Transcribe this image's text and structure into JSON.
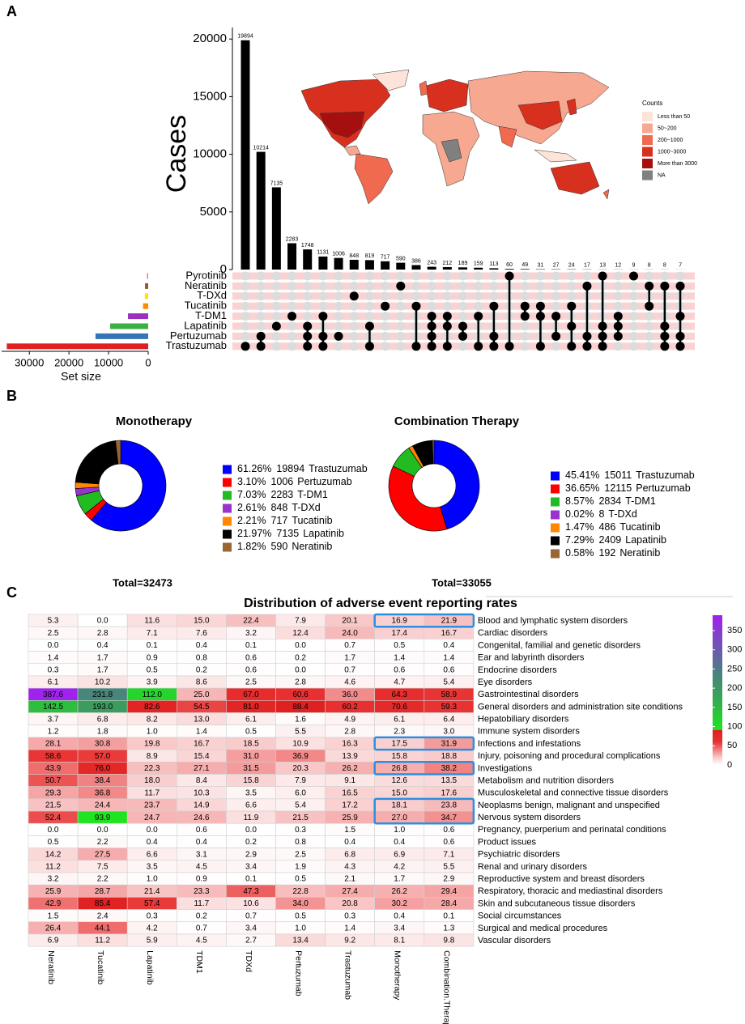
{
  "panel_labels": [
    "A",
    "B",
    "C"
  ],
  "chart_data": [
    {
      "type": "bar",
      "ylabel": "Cases",
      "color": "#000000",
      "categories": [
        null,
        null,
        null,
        null,
        null,
        null,
        null,
        null,
        null,
        null,
        null,
        null,
        null,
        null,
        null,
        null,
        null,
        null,
        null,
        null,
        null,
        null,
        null,
        null,
        null,
        null,
        null,
        null,
        null
      ],
      "values": [
        19894,
        10214,
        7135,
        2283,
        1748,
        1131,
        1006,
        848,
        819,
        717,
        590,
        386,
        243,
        212,
        189,
        159,
        113,
        60,
        49,
        31,
        27,
        24,
        17,
        13,
        12,
        9,
        8,
        8,
        7
      ],
      "intersections": [
        [
          7
        ],
        [
          6,
          7
        ],
        [
          5
        ],
        [
          4
        ],
        [
          5,
          6,
          7
        ],
        [
          4,
          6,
          7
        ],
        [
          6
        ],
        [
          2
        ],
        [
          5,
          7
        ],
        [
          3
        ],
        [
          1
        ],
        [
          3,
          7
        ],
        [
          4,
          5,
          6,
          7
        ],
        [
          4,
          5,
          7
        ],
        [
          5,
          6
        ],
        [
          4,
          7
        ],
        [
          3,
          6,
          7
        ],
        [
          0,
          7
        ],
        [
          3,
          4
        ],
        [
          3,
          4,
          7
        ],
        [
          4,
          6
        ],
        [
          3,
          5,
          7
        ],
        [
          1,
          6,
          7
        ],
        [
          0,
          5,
          6,
          7
        ],
        [
          4,
          5,
          6
        ],
        [
          0
        ],
        [
          1,
          3
        ],
        [
          1,
          5,
          6,
          7
        ],
        [
          1,
          4,
          6,
          7
        ]
      ],
      "ylim": [
        0,
        21000
      ],
      "yticks": [
        0,
        5000,
        10000,
        15000,
        20000
      ]
    },
    {
      "type": "barh",
      "xlabel": "Set size",
      "x_reversed": true,
      "categories": [
        "Pyrotinib",
        "Neratinib",
        "T-DXd",
        "Tucatinib",
        "T-DM1",
        "Lapatinib",
        "Pertuzumab",
        "Trastuzumab"
      ],
      "values": [
        300,
        800,
        860,
        1300,
        5100,
        9600,
        13300,
        35700
      ],
      "colors": [
        "#ff69b4",
        "#a0522d",
        "#ffe600",
        "#ff8c00",
        "#9b30c0",
        "#3cb043",
        "#3575b5",
        "#e02020"
      ],
      "xlim": [
        0,
        37000
      ],
      "xticks": [
        0,
        10000,
        20000,
        30000
      ]
    },
    {
      "type": "map",
      "legend_title": "Counts",
      "categories": [
        "Less than 50",
        "50~200",
        "200~1000",
        "1000~3000",
        "More than 3000",
        "NA"
      ],
      "colors": [
        "#fde3d8",
        "#f7a890",
        "#ef6a4e",
        "#d7301f",
        "#a50f0f",
        "#808080"
      ]
    },
    {
      "type": "pie",
      "title": "Monotherapy",
      "total_label": "Total=32473",
      "categories": [
        "Trastuzumab",
        "Pertuzumab",
        "T-DM1",
        "T-DXd",
        "Tucatinib",
        "Lapatinib",
        "Neratinib"
      ],
      "values": [
        61.26,
        3.1,
        7.03,
        2.61,
        2.21,
        21.97,
        1.82
      ],
      "value_labels": [
        "61.26%",
        "3.10%",
        "7.03%",
        "2.61%",
        "2.21%",
        "21.97%",
        "1.82%"
      ],
      "counts": [
        19894,
        1006,
        2283,
        848,
        717,
        7135,
        590
      ],
      "colors": [
        "#0000ff",
        "#ff0000",
        "#22bb22",
        "#9933cc",
        "#ff8800",
        "#000000",
        "#996633"
      ]
    },
    {
      "type": "pie",
      "title": "Combination Therapy",
      "total_label": "Total=33055",
      "categories": [
        "Trastuzumab",
        "Pertuzumab",
        "T-DM1",
        "T-DXd",
        "Tucatinib",
        "Lapatinib",
        "Neratinib"
      ],
      "values": [
        45.41,
        36.65,
        8.57,
        0.02,
        1.47,
        7.29,
        0.58
      ],
      "value_labels": [
        "45.41%",
        "36.65%",
        "8.57%",
        "0.02%",
        "1.47%",
        "7.29%",
        "0.58%"
      ],
      "counts": [
        15011,
        12115,
        2834,
        8,
        486,
        2409,
        192
      ],
      "colors": [
        "#0000ff",
        "#ff0000",
        "#22bb22",
        "#9933cc",
        "#ff8800",
        "#000000",
        "#996633"
      ]
    },
    {
      "type": "heatmap",
      "title": "Distribution of adverse event reporting rates",
      "columns": [
        "Neratinib",
        "Tucatinib",
        "Lapatinib",
        "TDM1",
        "TDXd",
        "Pertuzumab",
        "Trastuzumab",
        "Monotherapy",
        "Combination.Therapy"
      ],
      "rows": [
        "Blood and lymphatic system disorders",
        "Cardiac disorders",
        "Congenital, familial and genetic disorders",
        "Ear and labyrinth disorders",
        "Endocrine disorders",
        "Eye disorders",
        "Gastrointestinal disorders",
        "General disorders and administration site conditions",
        "Hepatobiliary disorders",
        "Immune system disorders",
        "Infections and infestations",
        "Injury, poisoning and procedural complications",
        "Investigations",
        "Metabolism and nutrition disorders",
        "Musculoskeletal and connective tissue disorders",
        "Neoplasms benign, malignant and unspecified",
        "Nervous system disorders",
        "Pregnancy, puerperium and perinatal conditions",
        "Product issues",
        "Psychiatric disorders",
        "Renal and urinary disorders",
        "Reproductive system and breast disorders",
        "Respiratory, thoracic and mediastinal disorders",
        "Skin and subcutaneous tissue disorders",
        "Social circumstances",
        "Surgical and medical procedures",
        "Vascular disorders"
      ],
      "values": [
        [
          5.3,
          0,
          11.6,
          15,
          22.4,
          7.9,
          20.1,
          16.9,
          21.9
        ],
        [
          2.5,
          2.8,
          7.1,
          7.6,
          3.2,
          12.4,
          24,
          17.4,
          16.7
        ],
        [
          0,
          0.4,
          0.1,
          0.4,
          0.1,
          0,
          0.7,
          0.5,
          0.4
        ],
        [
          1.4,
          1.7,
          0.9,
          0.8,
          0.6,
          0.2,
          1.7,
          1.4,
          1.4
        ],
        [
          0.3,
          1.7,
          0.5,
          0.2,
          0.6,
          0,
          0.7,
          0.6,
          0.6
        ],
        [
          6.1,
          10.2,
          3.9,
          8.6,
          2.5,
          2.8,
          4.6,
          4.7,
          5.4
        ],
        [
          387.6,
          231.8,
          112,
          25,
          67,
          60.6,
          36,
          64.3,
          58.9
        ],
        [
          142.5,
          193,
          82.6,
          54.5,
          81,
          88.4,
          60.2,
          70.6,
          59.3
        ],
        [
          3.7,
          6.8,
          8.2,
          13,
          6.1,
          1.6,
          4.9,
          6.1,
          6.4
        ],
        [
          1.2,
          1.8,
          1,
          1.4,
          0.5,
          5.5,
          2.8,
          2.3,
          3
        ],
        [
          28.1,
          30.8,
          19.8,
          16.7,
          18.5,
          10.9,
          16.3,
          17.5,
          31.9
        ],
        [
          58.6,
          57,
          8.9,
          15.4,
          31,
          36.9,
          13.9,
          15.8,
          18.8
        ],
        [
          43.9,
          76,
          22.3,
          27.1,
          31.5,
          20.3,
          26.2,
          26.8,
          38.2
        ],
        [
          50.7,
          38.4,
          18,
          8.4,
          15.8,
          7.9,
          9.1,
          12.6,
          13.5
        ],
        [
          29.3,
          36.8,
          11.7,
          10.3,
          3.5,
          6,
          16.5,
          15,
          17.6
        ],
        [
          21.5,
          24.4,
          23.7,
          14.9,
          6.6,
          5.4,
          17.2,
          18.1,
          23.8
        ],
        [
          52.4,
          93.9,
          24.7,
          24.6,
          11.9,
          21.5,
          25.9,
          27,
          34.7
        ],
        [
          0,
          0,
          0,
          0.6,
          0,
          0.3,
          1.5,
          1,
          0.6
        ],
        [
          0.5,
          2.2,
          0.4,
          0.4,
          0.2,
          0.8,
          0.4,
          0.4,
          0.6
        ],
        [
          14.2,
          27.5,
          6.6,
          3.1,
          2.9,
          2.5,
          6.8,
          6.9,
          7.1
        ],
        [
          11.2,
          7.5,
          3.5,
          4.5,
          3.4,
          1.9,
          4.3,
          4.2,
          5.5
        ],
        [
          3.2,
          2.2,
          1,
          0.9,
          0.1,
          0.5,
          2.1,
          1.7,
          2.9
        ],
        [
          25.9,
          28.7,
          21.4,
          23.3,
          47.3,
          22.8,
          27.4,
          26.2,
          29.4
        ],
        [
          42.9,
          85.4,
          57.4,
          11.7,
          10.6,
          34,
          20.8,
          30.2,
          28.4
        ],
        [
          1.5,
          2.4,
          0.3,
          0.2,
          0.7,
          0.5,
          0.3,
          0.4,
          0.1
        ],
        [
          26.4,
          44.1,
          4.2,
          0.7,
          3.4,
          1,
          1.4,
          3.4,
          1.3
        ],
        [
          6.9,
          11.2,
          5.9,
          4.5,
          2.7,
          13.4,
          9.2,
          8.1,
          9.8
        ]
      ],
      "value_labels": [
        [
          "5.3",
          "0.0",
          "11.6",
          "15.0",
          "22.4",
          "7.9",
          "20.1",
          "16.9",
          "21.9"
        ],
        [
          "2.5",
          "2.8",
          "7.1",
          "7.6",
          "3.2",
          "12.4",
          "24.0",
          "17.4",
          "16.7"
        ],
        [
          "0.0",
          "0.4",
          "0.1",
          "0.4",
          "0.1",
          "0.0",
          "0.7",
          "0.5",
          "0.4"
        ],
        [
          "1.4",
          "1.7",
          "0.9",
          "0.8",
          "0.6",
          "0.2",
          "1.7",
          "1.4",
          "1.4"
        ],
        [
          "0.3",
          "1.7",
          "0.5",
          "0.2",
          "0.6",
          "0.0",
          "0.7",
          "0.6",
          "0.6"
        ],
        [
          "6.1",
          "10.2",
          "3.9",
          "8.6",
          "2.5",
          "2.8",
          "4.6",
          "4.7",
          "5.4"
        ],
        [
          "387.6",
          "231.8",
          "112.0",
          "25.0",
          "67.0",
          "60.6",
          "36.0",
          "64.3",
          "58.9"
        ],
        [
          "142.5",
          "193.0",
          "82.6",
          "54.5",
          "81.0",
          "88.4",
          "60.2",
          "70.6",
          "59.3"
        ],
        [
          "3.7",
          "6.8",
          "8.2",
          "13.0",
          "6.1",
          "1.6",
          "4.9",
          "6.1",
          "6.4"
        ],
        [
          "1.2",
          "1.8",
          "1.0",
          "1.4",
          "0.5",
          "5.5",
          "2.8",
          "2.3",
          "3.0"
        ],
        [
          "28.1",
          "30.8",
          "19.8",
          "16.7",
          "18.5",
          "10.9",
          "16.3",
          "17.5",
          "31.9"
        ],
        [
          "58.6",
          "57.0",
          "8.9",
          "15.4",
          "31.0",
          "36.9",
          "13.9",
          "15.8",
          "18.8"
        ],
        [
          "43.9",
          "76.0",
          "22.3",
          "27.1",
          "31.5",
          "20.3",
          "26.2",
          "26.8",
          "38.2"
        ],
        [
          "50.7",
          "38.4",
          "18.0",
          "8.4",
          "15.8",
          "7.9",
          "9.1",
          "12.6",
          "13.5"
        ],
        [
          "29.3",
          "36.8",
          "11.7",
          "10.3",
          "3.5",
          "6.0",
          "16.5",
          "15.0",
          "17.6"
        ],
        [
          "21.5",
          "24.4",
          "23.7",
          "14.9",
          "6.6",
          "5.4",
          "17.2",
          "18.1",
          "23.8"
        ],
        [
          "52.4",
          "93.9",
          "24.7",
          "24.6",
          "11.9",
          "21.5",
          "25.9",
          "27.0",
          "34.7"
        ],
        [
          "0.0",
          "0.0",
          "0.0",
          "0.6",
          "0.0",
          "0.3",
          "1.5",
          "1.0",
          "0.6"
        ],
        [
          "0.5",
          "2.2",
          "0.4",
          "0.4",
          "0.2",
          "0.8",
          "0.4",
          "0.4",
          "0.6"
        ],
        [
          "14.2",
          "27.5",
          "6.6",
          "3.1",
          "2.9",
          "2.5",
          "6.8",
          "6.9",
          "7.1"
        ],
        [
          "11.2",
          "7.5",
          "3.5",
          "4.5",
          "3.4",
          "1.9",
          "4.3",
          "4.2",
          "5.5"
        ],
        [
          "3.2",
          "2.2",
          "1.0",
          "0.9",
          "0.1",
          "0.5",
          "2.1",
          "1.7",
          "2.9"
        ],
        [
          "25.9",
          "28.7",
          "21.4",
          "23.3",
          "47.3",
          "22.8",
          "27.4",
          "26.2",
          "29.4"
        ],
        [
          "42.9",
          "85.4",
          "57.4",
          "11.7",
          "10.6",
          "34.0",
          "20.8",
          "30.2",
          "28.4"
        ],
        [
          "1.5",
          "2.4",
          "0.3",
          "0.2",
          "0.7",
          "0.5",
          "0.3",
          "0.4",
          "0.1"
        ],
        [
          "26.4",
          "44.1",
          "4.2",
          "0.7",
          "3.4",
          "1.0",
          "1.4",
          "3.4",
          "1.3"
        ],
        [
          "6.9",
          "11.2",
          "5.9",
          "4.5",
          "2.7",
          "13.4",
          "9.2",
          "8.1",
          "9.8"
        ]
      ],
      "color_scale": [
        {
          "value": 0,
          "color": "#ffffff"
        },
        {
          "value": 20,
          "color": "#f9c8c8"
        },
        {
          "value": 60,
          "color": "#e83030"
        },
        {
          "value": 90,
          "color": "#e02020"
        },
        {
          "value": 92,
          "color": "#1ee61e"
        },
        {
          "value": 160,
          "color": "#33b04a"
        },
        {
          "value": 240,
          "color": "#4a8080"
        },
        {
          "value": 390,
          "color": "#a020f0"
        }
      ],
      "zlim": [
        0,
        390
      ],
      "zticks": [
        0,
        50,
        100,
        150,
        200,
        250,
        300,
        350
      ]
    }
  ]
}
